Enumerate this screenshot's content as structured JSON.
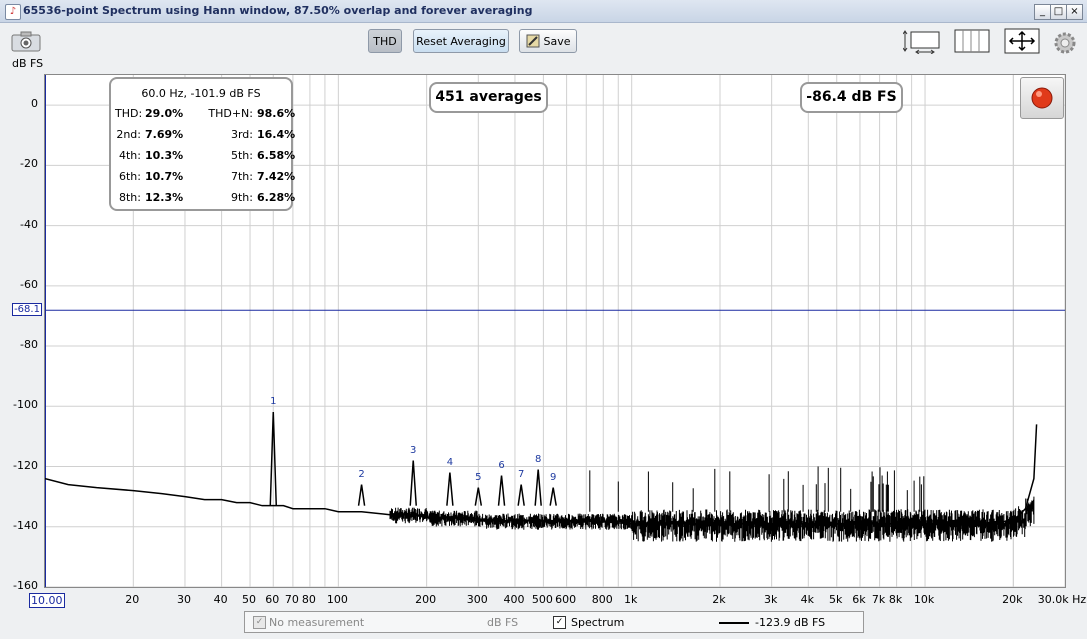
{
  "window": {
    "title": "65536-point Spectrum using Hann window, 87.50% overlap and forever averaging",
    "minimize": "_",
    "maximize": "□",
    "close": "×"
  },
  "toolbar": {
    "thd_label": "THD",
    "reset_label": "Reset Averaging",
    "save_label": "Save",
    "axis_unit": "dB FS"
  },
  "readout": {
    "peak": "60.0 Hz, -101.9 dB FS",
    "rows": [
      {
        "k1": "THD:",
        "v1": "29.0%",
        "k2": "THD+N:",
        "v2": "98.6%"
      },
      {
        "k1": "2nd:",
        "v1": "7.69%",
        "k2": "3rd:",
        "v2": "16.4%"
      },
      {
        "k1": "4th:",
        "v1": "10.3%",
        "k2": "5th:",
        "v2": "6.58%"
      },
      {
        "k1": "6th:",
        "v1": "10.7%",
        "k2": "7th:",
        "v2": "7.42%"
      },
      {
        "k1": "8th:",
        "v1": "12.3%",
        "k2": "9th:",
        "v2": "6.28%"
      }
    ],
    "averages": "451 averages",
    "level": "-86.4 dB FS"
  },
  "colors": {
    "marker_line": "#1a2aa0",
    "trace": "#000000",
    "grid": "#d0d0d0",
    "record": "#e03a1a"
  },
  "chart_data": {
    "type": "line",
    "x_scale": "log",
    "xlim": [
      10,
      30000
    ],
    "ylim": [
      -160,
      10
    ],
    "ylabel": "dB FS",
    "yticks": [
      "0",
      "-20",
      "-40",
      "-60",
      "-80",
      "-100",
      "-120",
      "-140",
      "-160"
    ],
    "ytick_values": [
      0,
      -20,
      -40,
      -60,
      -80,
      -100,
      -120,
      -140,
      -160
    ],
    "xticks": [
      "10.00",
      "20",
      "30",
      "40",
      "50",
      "60",
      "70",
      "80",
      "100",
      "200",
      "300",
      "400",
      "500",
      "600",
      "800",
      "1k",
      "2k",
      "3k",
      "4k",
      "5k",
      "6k",
      "7k",
      "8k",
      "10k",
      "20k",
      "30.0k Hz"
    ],
    "xtick_values": [
      10,
      20,
      30,
      40,
      50,
      60,
      70,
      80,
      100,
      200,
      300,
      400,
      500,
      600,
      800,
      1000,
      2000,
      3000,
      4000,
      5000,
      6000,
      7000,
      8000,
      10000,
      20000,
      30000
    ],
    "marker_level": "-68.1",
    "marker_value": -68.1,
    "harmonics": [
      {
        "label": "1",
        "x": 60,
        "y": -101.9
      },
      {
        "label": "2",
        "x": 120,
        "y": -126
      },
      {
        "label": "3",
        "x": 180,
        "y": -118
      },
      {
        "label": "4",
        "x": 240,
        "y": -122
      },
      {
        "label": "5",
        "x": 300,
        "y": -127
      },
      {
        "label": "6",
        "x": 360,
        "y": -123
      },
      {
        "label": "7",
        "x": 420,
        "y": -126
      },
      {
        "label": "8",
        "x": 480,
        "y": -121
      },
      {
        "label": "9",
        "x": 540,
        "y": -127
      }
    ],
    "series": [
      {
        "x": [
          10,
          12,
          15,
          20,
          25,
          30,
          35,
          40,
          45,
          50,
          55,
          60,
          65,
          70,
          80,
          90,
          100,
          120,
          150,
          180,
          200,
          250,
          300,
          400,
          500,
          700,
          1000,
          2000,
          3000,
          5000,
          8000,
          10000,
          15000,
          20000,
          22000,
          23500,
          24000
        ],
        "y": [
          -124,
          -126,
          -127,
          -128,
          -129,
          -130,
          -131,
          -131,
          -132,
          -132,
          -133,
          -133,
          -133,
          -134,
          -134,
          -134,
          -135,
          -135,
          -136,
          -136,
          -137,
          -137,
          -138,
          -138,
          -138,
          -138,
          -139,
          -139,
          -139,
          -139,
          -139,
          -139,
          -139,
          -138,
          -134,
          -124,
          -106
        ]
      }
    ]
  },
  "legend": {
    "no_measurement": "No measurement",
    "unit": "dB FS",
    "spectrum": "Spectrum",
    "value": "-123.9 dB FS"
  }
}
